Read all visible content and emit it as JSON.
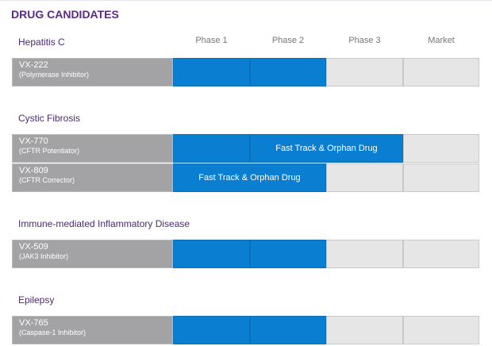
{
  "title": "DRUG CANDIDATES",
  "phases": [
    "Phase 1",
    "Phase 2",
    "Phase 3",
    "Market"
  ],
  "groups": [
    {
      "name": "Hepatitis C",
      "drugs": [
        {
          "name": "VX-222",
          "desc": "(Polymerase Inhibitor)",
          "progress": 2
        }
      ]
    },
    {
      "name": "Cystic Fibrosis",
      "drugs": [
        {
          "name": "VX-770",
          "desc": "(CFTR Potentiator)",
          "progress": 3,
          "note": "Fast Track & Orphan Drug"
        },
        {
          "name": "VX-809",
          "desc": "(CFTR Corrector)",
          "progress": 2,
          "note": "Fast Track & Orphan Drug"
        }
      ]
    },
    {
      "name": "Immune-mediated Inflammatory Disease",
      "drugs": [
        {
          "name": "VX-509",
          "desc": "(JAK3 Inhibitor)",
          "progress": 2
        }
      ]
    },
    {
      "name": "Epilepsy",
      "drugs": [
        {
          "name": "VX-765",
          "desc": "(Caspase-1 Inhibitor)",
          "progress": 2
        }
      ]
    }
  ]
}
